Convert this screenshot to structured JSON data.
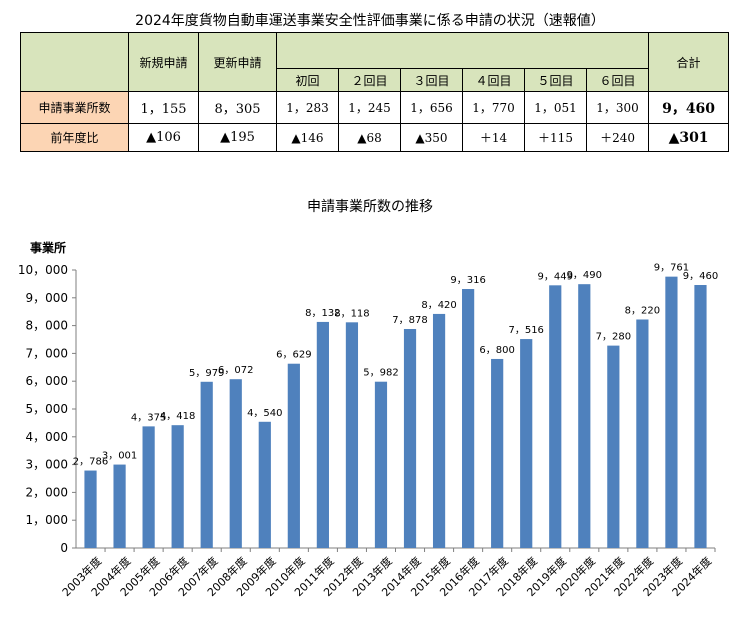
{
  "table": {
    "title": "2024年度貨物自動車運送事業安全性評価事業に係る申請の状況（速報値）",
    "headers": {
      "new": "新規申請",
      "renew": "更新申請",
      "rounds": [
        "初回",
        "２回目",
        "３回目",
        "４回目",
        "５回目",
        "６回目"
      ],
      "total": "合計"
    },
    "rows": [
      {
        "label": "申請事業所数",
        "new": "1，155",
        "renew": "8，305",
        "rounds": [
          "1，283",
          "1，245",
          "1，656",
          "1，770",
          "1，051",
          "1，300"
        ],
        "total": "9，460"
      },
      {
        "label": "前年度比",
        "new": "▲106",
        "renew": "▲195",
        "rounds": [
          "▲146",
          "▲68",
          "▲350",
          "＋14",
          "＋115",
          "＋240"
        ],
        "total": "▲301"
      }
    ],
    "colors": {
      "header_fill": "#d8e4bc",
      "label_fill": "#fcd5b4"
    }
  },
  "chart_data": {
    "type": "bar",
    "title": "申請事業所数の推移",
    "ylabel": "事業所",
    "ylim": [
      0,
      10000
    ],
    "yticks": [
      "0",
      "1，000",
      "2，000",
      "3，000",
      "4，000",
      "5，000",
      "6，000",
      "7，000",
      "8，000",
      "9，000",
      "10，000"
    ],
    "categories": [
      "2003年度",
      "2004年度",
      "2005年度",
      "2006年度",
      "2007年度",
      "2008年度",
      "2009年度",
      "2010年度",
      "2011年度",
      "2012年度",
      "2013年度",
      "2014年度",
      "2015年度",
      "2016年度",
      "2017年度",
      "2018年度",
      "2019年度",
      "2020年度",
      "2021年度",
      "2022年度",
      "2023年度",
      "2024年度"
    ],
    "values": [
      2786,
      3001,
      4375,
      4418,
      5979,
      6072,
      4540,
      6629,
      8132,
      8118,
      5982,
      7878,
      8420,
      9316,
      6800,
      7516,
      9449,
      9490,
      7280,
      8220,
      9761,
      9460
    ],
    "data_labels": [
      "2，786",
      "3，001",
      "4，375",
      "4，418",
      "5，979",
      "6，072",
      "4，540",
      "6，629",
      "8，132",
      "8，118",
      "5，982",
      "7，878",
      "8，420",
      "9，316",
      "6，800",
      "7，516",
      "9，449",
      "9，490",
      "7，280",
      "8，220",
      "9，761",
      "9，460"
    ],
    "bar_color": "#4f81bd",
    "grid": false,
    "legend": "none"
  }
}
